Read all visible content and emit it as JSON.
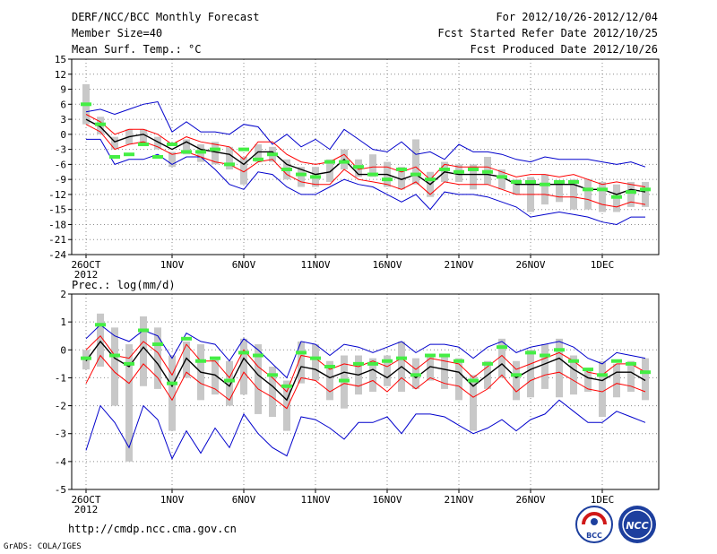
{
  "header": {
    "title": "DERF/NCC/BCC Monthly Forecast",
    "member_size": "Member Size=40",
    "variable": "Mean Surf. Temp.: °C",
    "period": "For 2012/10/26-2012/12/04",
    "started": "Fcst Started Refer Date 2012/10/25",
    "produced": "Fcst Produced Date 2012/10/26"
  },
  "footer": {
    "url": "http://cmdp.ncc.cma.gov.cn",
    "credit": "GrADS: COLA/IGES",
    "logo_left_text": "BCC",
    "logo_right_text": "NCC"
  },
  "colors": {
    "box": "#c8c8c8",
    "ensemble_mean": "#000000",
    "inner_bounds": "#ff0000",
    "outer_bounds": "#0000cc",
    "observed": "#44ee44",
    "grid": "#8c8c8c"
  },
  "chart_data": [
    {
      "type": "line",
      "title": "Mean Surf. Temp.: °C",
      "ylabel": "°C",
      "ylim": [
        -24,
        15
      ],
      "yticks": [
        15,
        12,
        9,
        6,
        3,
        0,
        -3,
        -6,
        -9,
        -12,
        -15,
        -18,
        -21,
        -24
      ],
      "xticks": [
        {
          "day": 0,
          "label": "26OCT",
          "sub": "2012"
        },
        {
          "day": 6,
          "label": "1NOV"
        },
        {
          "day": 11,
          "label": "6NOV"
        },
        {
          "day": 16,
          "label": "11NOV"
        },
        {
          "day": 21,
          "label": "16NOV"
        },
        {
          "day": 26,
          "label": "21NOV"
        },
        {
          "day": 31,
          "label": "26NOV"
        },
        {
          "day": 36,
          "label": "1DEC"
        }
      ],
      "days": 40,
      "series": [
        {
          "name": "max",
          "color": "blue",
          "values": [
            4.5,
            5.0,
            4.0,
            5.0,
            6.0,
            6.5,
            0.5,
            2.5,
            0.5,
            0.5,
            0.0,
            2.0,
            1.5,
            -2.0,
            0.0,
            -2.5,
            -1.0,
            -3.0,
            1.0,
            -1.0,
            -3.0,
            -3.5,
            -1.5,
            -4.0,
            -3.5,
            -5.0,
            -2.0,
            -3.5,
            -3.5,
            -4.0,
            -5.0,
            -5.5,
            -4.5,
            -5.0,
            -5.0,
            -5.0,
            -5.5,
            -6.0,
            -5.5,
            -6.5
          ]
        },
        {
          "name": "upper",
          "color": "red",
          "values": [
            4.0,
            2.5,
            0.0,
            1.0,
            1.0,
            0.0,
            -2.0,
            -0.5,
            -1.5,
            -2.0,
            -2.5,
            -5.0,
            -1.5,
            -1.5,
            -4.0,
            -5.5,
            -6.0,
            -5.5,
            -4.0,
            -7.0,
            -6.5,
            -6.5,
            -7.5,
            -6.5,
            -9.0,
            -6.0,
            -6.5,
            -6.5,
            -6.5,
            -7.5,
            -8.5,
            -8.0,
            -8.0,
            -8.5,
            -8.0,
            -9.0,
            -10.0,
            -9.5,
            -10.0,
            -10.5
          ]
        },
        {
          "name": "mean",
          "color": "black",
          "values": [
            3.0,
            1.5,
            -1.5,
            -0.5,
            0.0,
            -1.5,
            -3.0,
            -1.5,
            -3.0,
            -3.5,
            -4.0,
            -6.0,
            -3.5,
            -3.5,
            -6.0,
            -7.0,
            -8.0,
            -7.5,
            -5.0,
            -8.0,
            -8.0,
            -8.0,
            -9.0,
            -8.0,
            -10.0,
            -7.5,
            -8.0,
            -8.0,
            -8.0,
            -8.5,
            -10.0,
            -10.0,
            -10.0,
            -10.0,
            -10.0,
            -11.0,
            -11.0,
            -12.0,
            -11.0,
            -11.5
          ]
        },
        {
          "name": "lower",
          "color": "red",
          "values": [
            2.0,
            0.5,
            -3.0,
            -2.0,
            -1.5,
            -2.5,
            -4.0,
            -3.5,
            -4.5,
            -5.5,
            -6.0,
            -7.5,
            -5.5,
            -5.0,
            -8.0,
            -9.5,
            -10.0,
            -10.0,
            -7.0,
            -9.0,
            -9.5,
            -10.0,
            -11.0,
            -9.5,
            -12.0,
            -9.5,
            -10.0,
            -10.0,
            -10.0,
            -11.0,
            -12.0,
            -12.0,
            -12.0,
            -12.5,
            -12.5,
            -13.0,
            -14.0,
            -14.5,
            -13.5,
            -14.0
          ]
        },
        {
          "name": "min",
          "color": "blue",
          "values": [
            -1.0,
            -1.0,
            -6.0,
            -5.0,
            -5.0,
            -4.0,
            -6.0,
            -4.5,
            -4.5,
            -7.0,
            -10.0,
            -11.0,
            -7.5,
            -8.0,
            -10.5,
            -12.0,
            -12.0,
            -10.5,
            -9.0,
            -10.0,
            -10.5,
            -12.0,
            -13.5,
            -12.0,
            -15.0,
            -11.5,
            -12.0,
            -12.0,
            -12.5,
            -13.5,
            -14.5,
            -16.5,
            -16.0,
            -15.5,
            -16.0,
            -16.5,
            -17.5,
            -18.0,
            -16.5,
            -16.5
          ]
        },
        {
          "name": "observed",
          "color": "green",
          "values": [
            6.0,
            2.0,
            -4.5,
            -4.0,
            -2.0,
            -4.5,
            -2.0,
            -3.5,
            -3.5,
            -3.0,
            -6.0,
            -3.0,
            -5.0,
            -4.0,
            -7.0,
            -8.0,
            -8.5,
            -5.5,
            -5.5,
            -6.5,
            -8.0,
            -9.0,
            -7.0,
            -8.0,
            -9.0,
            -7.0,
            -7.5,
            -7.0,
            -7.5,
            -8.5,
            -9.5,
            -9.5,
            -10.0,
            -9.5,
            -9.5,
            -11.0,
            -11.0,
            -12.5,
            -11.5,
            -11.0
          ]
        },
        {
          "name": "box_top",
          "color": "gray",
          "values": [
            10.0,
            3.5,
            -0.5,
            1.0,
            1.0,
            -0.5,
            -3.5,
            -1.0,
            -2.0,
            -1.5,
            -2.5,
            -4.5,
            -2.0,
            -2.5,
            -5.0,
            -6.5,
            -6.5,
            -5.0,
            -3.0,
            -5.0,
            -4.0,
            -5.5,
            -6.5,
            -1.0,
            -7.5,
            -5.5,
            -6.0,
            -6.0,
            -4.5,
            -7.0,
            -9.0,
            -8.5,
            -8.0,
            -9.5,
            -9.0,
            -9.0,
            -9.5,
            -10.0,
            -9.5,
            -9.5
          ]
        },
        {
          "name": "box_bottom",
          "color": "gray",
          "values": [
            2.0,
            0.0,
            -3.0,
            -2.0,
            -2.0,
            -3.0,
            -6.5,
            -4.0,
            -5.5,
            -6.0,
            -7.0,
            -10.0,
            -5.5,
            -5.5,
            -9.0,
            -10.5,
            -10.5,
            -9.5,
            -7.0,
            -8.5,
            -8.5,
            -10.5,
            -11.0,
            -10.0,
            -12.5,
            -9.5,
            -9.5,
            -11.0,
            -10.0,
            -11.0,
            -12.0,
            -15.5,
            -14.0,
            -13.5,
            -15.0,
            -15.0,
            -15.5,
            -15.5,
            -14.5,
            -14.5
          ]
        }
      ]
    },
    {
      "type": "line",
      "title": "Prec.: log(mm/d)",
      "ylabel": "log(mm/d)",
      "ylim": [
        -5,
        2
      ],
      "yticks": [
        2,
        1,
        0,
        -1,
        -2,
        -3,
        -4,
        -5
      ],
      "xticks": [
        {
          "day": 0,
          "label": "26OCT",
          "sub": "2012"
        },
        {
          "day": 6,
          "label": "1NOV"
        },
        {
          "day": 11,
          "label": "6NOV"
        },
        {
          "day": 16,
          "label": "11NOV"
        },
        {
          "day": 21,
          "label": "16NOV"
        },
        {
          "day": 26,
          "label": "21NOV"
        },
        {
          "day": 31,
          "label": "26NOV"
        },
        {
          "day": 36,
          "label": "1DEC"
        }
      ],
      "days": 40,
      "series": [
        {
          "name": "max",
          "color": "blue",
          "values": [
            0.4,
            0.9,
            0.5,
            0.3,
            0.7,
            0.5,
            -0.3,
            0.6,
            0.3,
            0.2,
            -0.4,
            0.4,
            0.0,
            -0.5,
            -1.0,
            0.3,
            0.2,
            -0.2,
            0.2,
            0.1,
            -0.1,
            0.1,
            0.3,
            -0.1,
            0.2,
            0.2,
            0.1,
            -0.3,
            0.1,
            0.3,
            -0.1,
            0.1,
            0.2,
            0.3,
            0.1,
            -0.3,
            -0.5,
            -0.1,
            -0.2,
            -0.3
          ]
        },
        {
          "name": "upper",
          "color": "red",
          "values": [
            0.0,
            0.5,
            -0.2,
            -0.3,
            0.3,
            -0.1,
            -0.9,
            0.2,
            -0.4,
            -0.4,
            -1.0,
            0.0,
            -0.6,
            -1.0,
            -1.5,
            -0.2,
            -0.3,
            -0.7,
            -0.5,
            -0.6,
            -0.4,
            -0.6,
            -0.3,
            -0.7,
            -0.3,
            -0.4,
            -0.5,
            -1.0,
            -0.6,
            -0.2,
            -0.7,
            -0.5,
            -0.3,
            -0.1,
            -0.4,
            -0.8,
            -0.9,
            -0.5,
            -0.5,
            -0.8
          ]
        },
        {
          "name": "mean",
          "color": "black",
          "values": [
            -0.4,
            0.3,
            -0.3,
            -0.6,
            0.1,
            -0.5,
            -1.3,
            -0.3,
            -0.8,
            -0.9,
            -1.3,
            -0.3,
            -0.9,
            -1.3,
            -1.8,
            -0.6,
            -0.7,
            -1.0,
            -0.8,
            -0.9,
            -0.7,
            -1.0,
            -0.6,
            -1.0,
            -0.6,
            -0.7,
            -0.8,
            -1.3,
            -0.9,
            -0.5,
            -1.0,
            -0.7,
            -0.5,
            -0.3,
            -0.7,
            -1.0,
            -1.1,
            -0.8,
            -0.8,
            -1.1
          ]
        },
        {
          "name": "lower",
          "color": "red",
          "values": [
            -1.2,
            -0.2,
            -0.8,
            -1.2,
            -0.5,
            -1.0,
            -1.8,
            -0.8,
            -1.2,
            -1.4,
            -1.8,
            -0.8,
            -1.4,
            -1.7,
            -2.1,
            -1.0,
            -1.1,
            -1.5,
            -1.2,
            -1.3,
            -1.1,
            -1.5,
            -1.0,
            -1.4,
            -1.0,
            -1.2,
            -1.3,
            -1.7,
            -1.4,
            -0.9,
            -1.5,
            -1.1,
            -0.9,
            -0.8,
            -1.1,
            -1.4,
            -1.5,
            -1.2,
            -1.3,
            -1.5
          ]
        },
        {
          "name": "min",
          "color": "blue",
          "values": [
            -3.6,
            -2.0,
            -2.6,
            -3.5,
            -2.0,
            -2.5,
            -3.9,
            -2.9,
            -3.7,
            -2.8,
            -3.5,
            -2.3,
            -3.0,
            -3.5,
            -3.8,
            -2.4,
            -2.5,
            -2.8,
            -3.2,
            -2.6,
            -2.6,
            -2.4,
            -3.0,
            -2.3,
            -2.3,
            -2.4,
            -2.7,
            -3.0,
            -2.8,
            -2.5,
            -2.9,
            -2.5,
            -2.3,
            -1.8,
            -2.2,
            -2.6,
            -2.6,
            -2.2,
            -2.4,
            -2.6
          ]
        },
        {
          "name": "observed",
          "color": "green",
          "values": [
            -0.3,
            0.9,
            -0.2,
            -0.5,
            0.7,
            0.2,
            -1.2,
            0.4,
            -0.4,
            -0.3,
            -1.1,
            -0.1,
            -0.2,
            -0.9,
            -1.3,
            -0.1,
            -0.3,
            -0.6,
            -1.1,
            -0.5,
            -0.5,
            -0.4,
            -0.3,
            -0.9,
            -0.2,
            -0.2,
            -0.4,
            -1.1,
            -0.5,
            0.1,
            -0.9,
            -0.1,
            -0.2,
            0.0,
            -0.4,
            -0.7,
            -0.9,
            -0.4,
            -0.5,
            -0.8
          ]
        },
        {
          "name": "box_top",
          "color": "gray",
          "values": [
            0.0,
            1.3,
            0.8,
            0.2,
            1.2,
            0.8,
            -0.2,
            0.3,
            0.2,
            -0.3,
            -0.4,
            0.4,
            0.2,
            -0.6,
            -1.1,
            0.3,
            0.2,
            -0.4,
            -0.2,
            -0.2,
            -0.3,
            -0.2,
            0.3,
            -0.3,
            -0.2,
            -0.2,
            -0.3,
            -0.9,
            -0.4,
            0.4,
            -0.4,
            0.0,
            0.2,
            0.4,
            -0.2,
            -0.7,
            -0.4,
            -0.5,
            -0.4,
            -0.3
          ]
        },
        {
          "name": "box_bottom",
          "color": "gray",
          "values": [
            -0.7,
            -0.6,
            -2.0,
            -4.0,
            -1.3,
            -1.4,
            -2.9,
            -1.0,
            -1.8,
            -1.6,
            -2.0,
            -1.6,
            -2.3,
            -2.4,
            -2.9,
            -1.2,
            -1.1,
            -1.8,
            -2.1,
            -1.6,
            -1.5,
            -1.3,
            -1.5,
            -1.4,
            -1.1,
            -1.4,
            -1.8,
            -2.9,
            -1.4,
            -1.0,
            -1.8,
            -1.7,
            -1.4,
            -1.7,
            -1.6,
            -1.5,
            -2.4,
            -1.7,
            -1.5,
            -1.8
          ]
        }
      ]
    }
  ]
}
